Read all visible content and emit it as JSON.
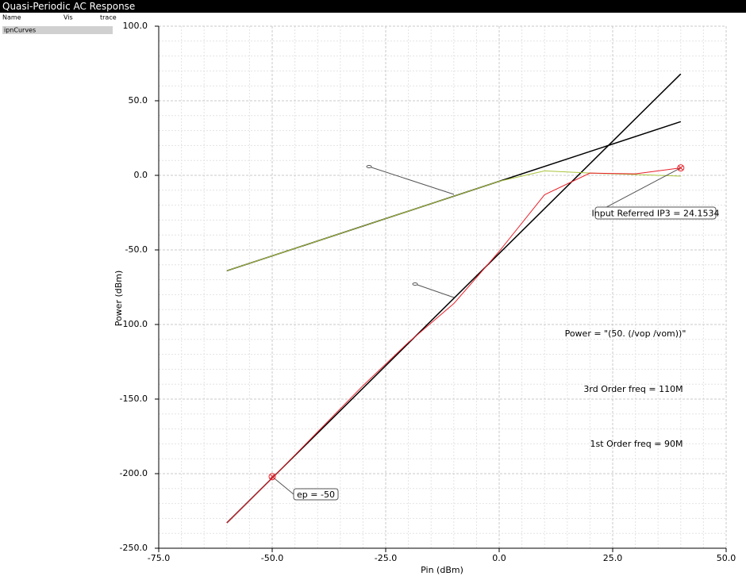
{
  "window_title": "Quasi-Periodic AC Response",
  "sidebar": {
    "columns": [
      "Name",
      "Vis",
      "trace"
    ],
    "rows": [
      "ipnCurves"
    ]
  },
  "chart_data": {
    "type": "line",
    "xlabel": "Pin (dBm)",
    "ylabel": "Power (dBm)",
    "xlim": [
      -75,
      50
    ],
    "ylim": [
      -250,
      100
    ],
    "xticks": [
      {
        "value": -75,
        "label": "-75.0"
      },
      {
        "value": -50,
        "label": "-50.0"
      },
      {
        "value": -25,
        "label": "-25.0"
      },
      {
        "value": 0,
        "label": "0.0"
      },
      {
        "value": 25,
        "label": "25.0"
      },
      {
        "value": 50,
        "label": "50.0"
      }
    ],
    "yticks": [
      {
        "value": -250,
        "label": "-250.0"
      },
      {
        "value": -200,
        "label": "-200.0"
      },
      {
        "value": -150,
        "label": "-150.0"
      },
      {
        "value": -100,
        "label": "-100.0"
      },
      {
        "value": -50,
        "label": "-50.0"
      },
      {
        "value": 0,
        "label": "0.0"
      },
      {
        "value": 50,
        "label": "50.0"
      },
      {
        "value": 100,
        "label": "100.0"
      }
    ],
    "grid": true,
    "series": [
      {
        "color": "#000000",
        "x": [
          -60,
          40
        ],
        "values": [
          -64,
          36
        ]
      },
      {
        "color": "#000000",
        "x": [
          -60,
          40
        ],
        "values": [
          -233,
          68
        ]
      },
      {
        "color": "#a8c43c",
        "x": [
          -60,
          -50,
          -40,
          -30,
          -20,
          -10,
          0,
          10,
          20,
          30,
          40
        ],
        "values": [
          -64,
          -54,
          -44,
          -34,
          -24,
          -14,
          -4,
          3,
          1.5,
          0.5,
          -0.5
        ]
      },
      {
        "color": "#e8202a",
        "x": [
          -60,
          -50,
          -40,
          -30,
          -20,
          -10,
          0,
          10,
          20,
          30,
          40
        ],
        "values": [
          -233,
          -203,
          -172,
          -141,
          -112,
          -86,
          -51,
          -13,
          1.5,
          1,
          5
        ]
      }
    ],
    "markers": [
      {
        "x": -50,
        "y": -202,
        "label": "ep = -50"
      },
      {
        "x": 40,
        "y": 5,
        "label": "Input Referred IP3 = 24.1534"
      }
    ],
    "annotations": [
      "Power = \"(50. (/vop /vom))\"",
      "3rd Order freq = 110M",
      "1st Order freq = 90M"
    ]
  }
}
